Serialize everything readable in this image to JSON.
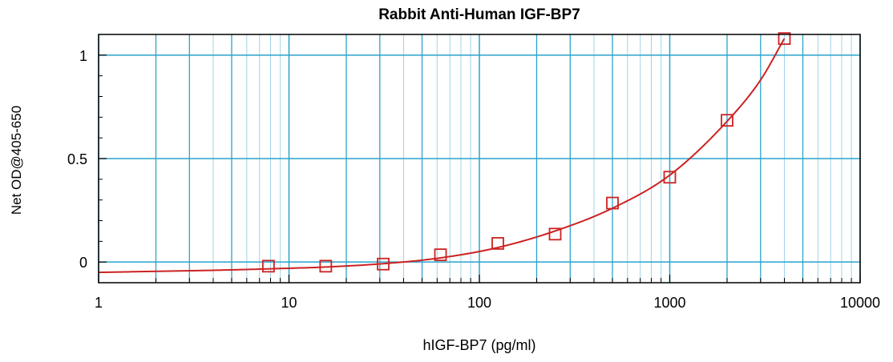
{
  "chart_data": {
    "type": "scatter",
    "title": "Rabbit Anti-Human IGF-BP7",
    "xlabel": "hIGF-BP7 (pg/ml)",
    "ylabel": "Net OD@405-650",
    "x_scale": "log",
    "xlim": [
      1,
      10000
    ],
    "ylim": [
      -0.1,
      1.1
    ],
    "x_ticks": [
      "1",
      "10",
      "100",
      "1000",
      "10000"
    ],
    "y_ticks": [
      "0",
      "0.5",
      "1"
    ],
    "grid": true,
    "series": [
      {
        "marker": "square",
        "x": [
          7.8,
          15.6,
          31.25,
          62.5,
          125,
          250,
          500,
          1000,
          2000,
          4000
        ],
        "y": [
          -0.02,
          -0.02,
          -0.01,
          0.035,
          0.09,
          0.135,
          0.285,
          0.41,
          0.685,
          1.08
        ]
      }
    ],
    "fit_curve": {
      "type": "smooth fit",
      "x": [
        1,
        2,
        4,
        7.8,
        15.6,
        31.25,
        62.5,
        125,
        250,
        500,
        1000,
        2000,
        3000,
        4000
      ],
      "y": [
        -0.05,
        -0.045,
        -0.04,
        -0.033,
        -0.024,
        -0.008,
        0.02,
        0.07,
        0.15,
        0.26,
        0.42,
        0.68,
        0.88,
        1.08
      ]
    },
    "colors": {
      "grid": "#29a3cc",
      "minor_grid": "#9fd4e6",
      "series": "#cc2222",
      "axis": "#000000"
    }
  }
}
